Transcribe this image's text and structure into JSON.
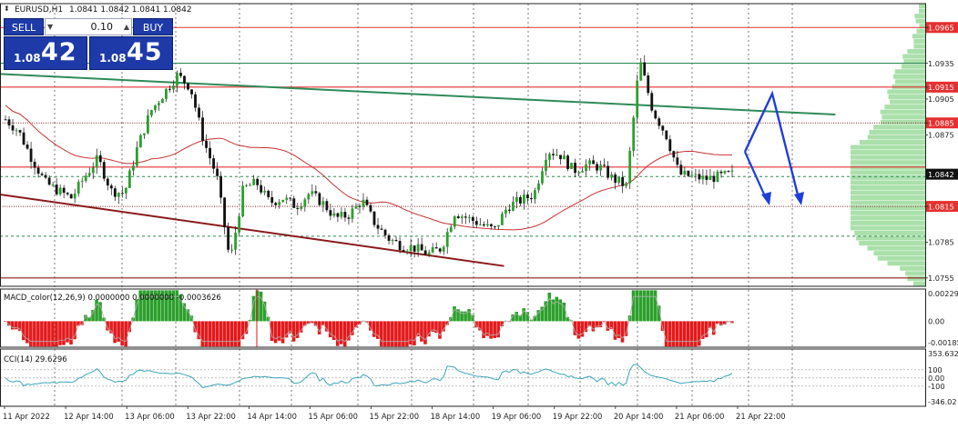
{
  "header": {
    "symbol_label": "EURUSD,H1",
    "ohlc_label": "1.0841 1.0842 1.0841 1.0842"
  },
  "trade_panel": {
    "sell_label": "SELL",
    "buy_label": "BUY",
    "lot_value": "0.10",
    "bid_small": "1.08",
    "bid_big": "42",
    "ask_small": "1.08",
    "ask_big": "45",
    "colors": {
      "button_bg": "#1d3aa8",
      "text": "#ffffff"
    }
  },
  "chart_data": [
    {
      "type": "candlestick",
      "symbol": "EURUSD",
      "timeframe": "H1",
      "ylim": [
        1.0748,
        1.0985
      ],
      "y_ticks": [
        1.0965,
        1.0935,
        1.0915,
        1.0905,
        1.0885,
        1.0875,
        1.0842,
        1.0815,
        1.0785,
        1.0755
      ],
      "y_tick_labels": [
        "1.0965",
        "1.0935",
        "1.0915",
        "1.0905",
        "1.0885",
        "1.0875",
        "1.0842",
        "1.0815",
        "1.0785",
        "1.0755"
      ],
      "highlighted_levels": [
        "1.0965",
        "1.0915",
        "1.0885",
        "1.0815"
      ],
      "last_price": "1.0842",
      "x_tick_labels": [
        "11 Apr 2022",
        "12 Apr 14:00",
        "13 Apr 06:00",
        "13 Apr 22:00",
        "14 Apr 14:00",
        "15 Apr 06:00",
        "15 Apr 22:00",
        "18 Apr 14:00",
        "19 Apr 06:00",
        "19 Apr 22:00",
        "20 Apr 14:00",
        "21 Apr 06:00",
        "21 Apr 22:00"
      ],
      "key_closes": [
        1.0888,
        1.0878,
        1.0855,
        1.0835,
        1.0828,
        1.0822,
        1.084,
        1.0855,
        1.0828,
        1.0826,
        1.0865,
        1.0895,
        1.091,
        1.0925,
        1.0915,
        1.087,
        1.084,
        1.0768,
        1.083,
        1.0835,
        1.0818,
        1.0822,
        1.0815,
        1.0826,
        1.0818,
        1.0805,
        1.0808,
        1.082,
        1.08,
        1.0788,
        1.0782,
        1.078,
        1.0775,
        1.078,
        1.081,
        1.0805,
        1.08,
        1.0795,
        1.0815,
        1.082,
        1.0825,
        1.0862,
        1.0858,
        1.0845,
        1.085,
        1.0848,
        1.0838,
        1.0832,
        1.0938,
        1.0895,
        1.0875,
        1.0842,
        1.084,
        1.0838,
        1.084,
        1.0842
      ],
      "horizontal_levels": [
        {
          "price": 1.0965,
          "color": "#e53030",
          "style": "solid"
        },
        {
          "price": 1.0935,
          "color": "#2e8b57",
          "style": "solid"
        },
        {
          "price": 1.0915,
          "color": "#e53030",
          "style": "solid"
        },
        {
          "price": 1.0885,
          "color": "#8b1a1a",
          "style": "dotted"
        },
        {
          "price": 1.0848,
          "color": "#e53030",
          "style": "solid"
        },
        {
          "price": 1.084,
          "color": "#2e8b57",
          "style": "dashed"
        },
        {
          "price": 1.0815,
          "color": "#8b1a1a",
          "style": "dotted"
        },
        {
          "price": 1.079,
          "color": "#2e8b57",
          "style": "dashed"
        },
        {
          "price": 1.0755,
          "color": "#8b1a1a",
          "style": "solid"
        }
      ],
      "trend_lines": [
        {
          "from": [
            0.0,
            1.0926
          ],
          "to": [
            0.895,
            1.0892
          ],
          "color": "#2e8b57"
        },
        {
          "from": [
            0.0,
            1.0825
          ],
          "to": [
            0.54,
            1.0765
          ],
          "color": "#8b1a1a"
        }
      ],
      "moving_average_color": "#c83232",
      "grid": true
    },
    {
      "type": "histogram",
      "indicator_label": "MACD_color(12,26,9) 0.0000000 0.0000000 -0.0003626",
      "y_tick_labels": [
        "0.00229",
        "0.00",
        "-0.00185"
      ],
      "ylim": [
        -0.00185,
        0.00229
      ],
      "colors": {
        "up": "#2ca02c",
        "down": "#e31a1c",
        "signal": "#b0b0b0"
      }
    },
    {
      "type": "line",
      "indicator_label": "CCI(14) 29.6296",
      "y_tick_labels": [
        "353.632",
        "100",
        "0.00",
        "-100",
        "-346.02"
      ],
      "ylim": [
        -346.02,
        353.632
      ],
      "colors": {
        "line": "#3aa6b9"
      }
    }
  ]
}
